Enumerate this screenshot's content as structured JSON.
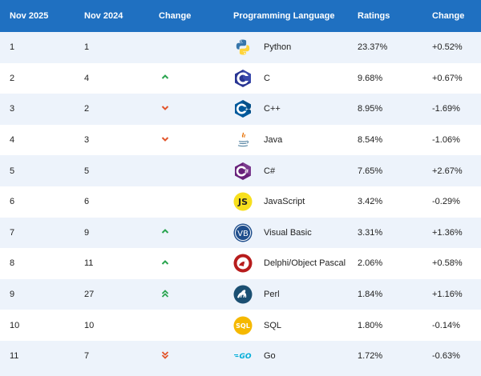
{
  "headers": [
    "Nov 2025",
    "Nov 2024",
    "Change",
    "Programming Language",
    "Ratings",
    "Change"
  ],
  "rows": [
    {
      "rank_2025": "1",
      "rank_2024": "1",
      "change": "none",
      "logo_icon": "python-logo-icon",
      "language": "Python",
      "rating": "23.37%",
      "delta": "+0.52%"
    },
    {
      "rank_2025": "2",
      "rank_2024": "4",
      "change": "up",
      "logo_icon": "c-logo-icon",
      "language": "C",
      "rating": "9.68%",
      "delta": "+0.67%"
    },
    {
      "rank_2025": "3",
      "rank_2024": "2",
      "change": "down",
      "logo_icon": "cpp-logo-icon",
      "language": "C++",
      "rating": "8.95%",
      "delta": "-1.69%"
    },
    {
      "rank_2025": "4",
      "rank_2024": "3",
      "change": "down",
      "logo_icon": "java-logo-icon",
      "language": "Java",
      "rating": "8.54%",
      "delta": "-1.06%"
    },
    {
      "rank_2025": "5",
      "rank_2024": "5",
      "change": "none",
      "logo_icon": "csharp-logo-icon",
      "language": "C#",
      "rating": "7.65%",
      "delta": "+2.67%"
    },
    {
      "rank_2025": "6",
      "rank_2024": "6",
      "change": "none",
      "logo_icon": "javascript-logo-icon",
      "language": "JavaScript",
      "rating": "3.42%",
      "delta": "-0.29%"
    },
    {
      "rank_2025": "7",
      "rank_2024": "9",
      "change": "up",
      "logo_icon": "visual-basic-logo-icon",
      "language": "Visual Basic",
      "rating": "3.31%",
      "delta": "+1.36%"
    },
    {
      "rank_2025": "8",
      "rank_2024": "11",
      "change": "up",
      "logo_icon": "delphi-logo-icon",
      "language": "Delphi/Object Pascal",
      "rating": "2.06%",
      "delta": "+0.58%"
    },
    {
      "rank_2025": "9",
      "rank_2024": "27",
      "change": "up-double",
      "logo_icon": "perl-logo-icon",
      "language": "Perl",
      "rating": "1.84%",
      "delta": "+1.16%"
    },
    {
      "rank_2025": "10",
      "rank_2024": "10",
      "change": "none",
      "logo_icon": "sql-logo-icon",
      "language": "SQL",
      "rating": "1.80%",
      "delta": "-0.14%"
    },
    {
      "rank_2025": "11",
      "rank_2024": "7",
      "change": "down-double",
      "logo_icon": "go-logo-icon",
      "language": "Go",
      "rating": "1.72%",
      "delta": "-0.63%"
    }
  ],
  "logo_text": {
    "javascript": "JS",
    "visual_basic": "VB",
    "sql": "SQL",
    "go": "GO"
  },
  "colors": {
    "header_bg": "#1f70c1",
    "row_alt": "#edf3fb",
    "up": "#2aa44f",
    "down": "#e2552b"
  }
}
